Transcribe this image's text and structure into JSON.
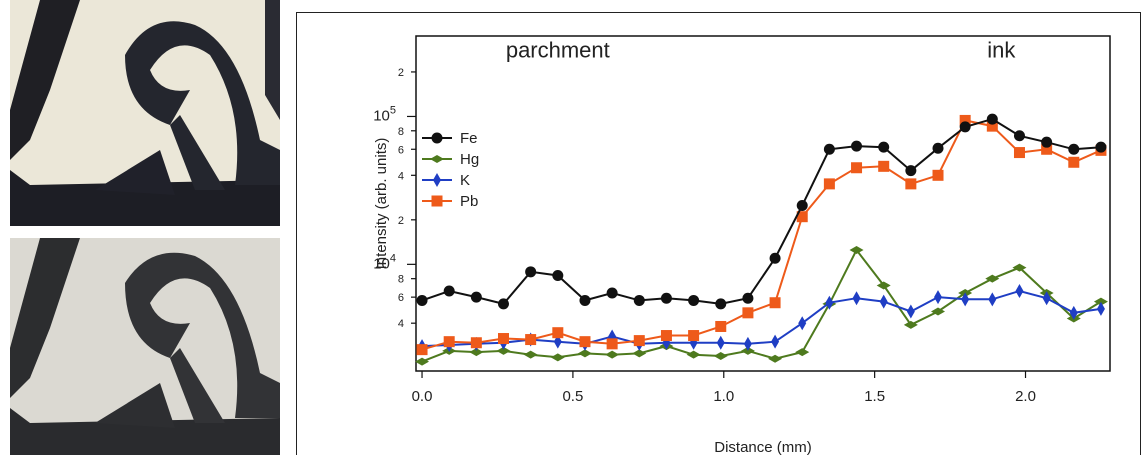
{
  "chart_data": {
    "type": "line",
    "xlabel": "Distance (mm)",
    "ylabel": "Intensity (arb. units)",
    "xlim": [
      -0.02,
      2.28
    ],
    "ylim": [
      1900,
      350000
    ],
    "yscale": "log",
    "xticks": [
      0.0,
      0.5,
      1.0,
      1.5,
      2.0
    ],
    "xtick_labels": [
      "0.0",
      "0.5",
      "1.0",
      "1.5",
      "2.0"
    ],
    "yticks": [
      {
        "value": 4000,
        "mantissa": "4",
        "exp": ""
      },
      {
        "value": 6000,
        "mantissa": "6",
        "exp": ""
      },
      {
        "value": 8000,
        "mantissa": "8",
        "exp": ""
      },
      {
        "value": 10000,
        "mantissa": "10",
        "exp": "4"
      },
      {
        "value": 20000,
        "mantissa": "2",
        "exp": ""
      },
      {
        "value": 40000,
        "mantissa": "4",
        "exp": ""
      },
      {
        "value": 60000,
        "mantissa": "6",
        "exp": ""
      },
      {
        "value": 80000,
        "mantissa": "8",
        "exp": ""
      },
      {
        "value": 100000,
        "mantissa": "10",
        "exp": "5"
      },
      {
        "value": 200000,
        "mantissa": "2",
        "exp": ""
      }
    ],
    "annotations": [
      {
        "text": "parchment",
        "x": 0.45,
        "y": 250000
      },
      {
        "text": "ink",
        "x": 1.92,
        "y": 250000
      }
    ],
    "legend_position": "upper-left",
    "x": [
      0.0,
      0.09,
      0.18,
      0.27,
      0.36,
      0.45,
      0.54,
      0.63,
      0.72,
      0.81,
      0.9,
      0.99,
      1.08,
      1.17,
      1.26,
      1.35,
      1.44,
      1.53,
      1.62,
      1.71,
      1.8,
      1.89,
      1.98,
      2.07,
      2.16,
      2.25
    ],
    "series": [
      {
        "name": "Fe",
        "color": "#111111",
        "marker": "circle",
        "values": [
          5700,
          6600,
          6000,
          5400,
          8900,
          8400,
          5700,
          6400,
          5700,
          5900,
          5700,
          5400,
          5900,
          11000,
          25000,
          60000,
          63000,
          62000,
          43000,
          61000,
          85000,
          96000,
          74000,
          67000,
          60000,
          62000
        ]
      },
      {
        "name": "Hg",
        "color": "#4e7a1e",
        "marker": "diamond",
        "values": [
          2200,
          2600,
          2550,
          2600,
          2450,
          2350,
          2500,
          2450,
          2500,
          2800,
          2450,
          2400,
          2600,
          2300,
          2550,
          5400,
          12500,
          7200,
          3900,
          4800,
          6400,
          8000,
          9500,
          6400,
          4300,
          5600
        ]
      },
      {
        "name": "K",
        "color": "#1f3ec4",
        "marker": "diamond-h",
        "values": [
          2800,
          2850,
          2900,
          2950,
          3100,
          3000,
          2900,
          3250,
          2900,
          2950,
          2950,
          2950,
          2900,
          3000,
          4000,
          5500,
          5900,
          5600,
          4800,
          6000,
          5800,
          5800,
          6600,
          5900,
          4700,
          5000
        ]
      },
      {
        "name": "Pb",
        "color": "#ee5a1a",
        "marker": "square",
        "values": [
          2650,
          3000,
          2950,
          3150,
          3100,
          3450,
          3000,
          2900,
          3050,
          3300,
          3300,
          3800,
          4700,
          5500,
          21000,
          35000,
          45000,
          46000,
          35000,
          40000,
          94000,
          86000,
          57000,
          60000,
          49000,
          59000
        ]
      }
    ]
  },
  "photos": {
    "top": {
      "icon": "parchment-ink-photo-icon"
    },
    "bottom": {
      "icon": "parchment-ink-photo-icon"
    }
  }
}
